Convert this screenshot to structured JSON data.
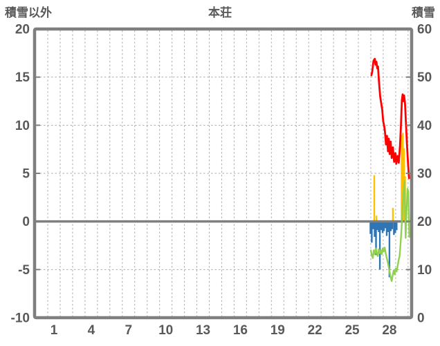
{
  "header": {
    "left_axis_title": "積雪以外",
    "chart_title": "本荘",
    "right_axis_title": "積雪"
  },
  "colors": {
    "frame": "#7F7F7F",
    "grid": "#ABABAB",
    "zero_line": "#7F7F7F",
    "text": "#595959",
    "red_series": "#FF0000",
    "orange_series": "#FFC000",
    "green_series": "#92D050",
    "blue_series": "#2E75B6",
    "background": "#FFFFFF"
  },
  "chart_data": {
    "type": "line",
    "title": "本荘",
    "left_axis": {
      "title": "積雪以外",
      "min": -10,
      "max": 20,
      "ticks": [
        20,
        15,
        10,
        5,
        0,
        -5,
        -10
      ]
    },
    "right_axis": {
      "title": "積雪",
      "min": 0,
      "max": 60,
      "ticks": [
        60,
        50,
        40,
        30,
        20,
        10,
        0
      ],
      "note": "right_value = (left_value + 10) * 2"
    },
    "x_axis": {
      "day_min": 1,
      "day_max": 30,
      "tick_labels": [
        1,
        4,
        7,
        10,
        13,
        16,
        19,
        22,
        25,
        28
      ]
    },
    "grid": {
      "h_dashed_at_left_values": [
        15,
        10,
        5,
        -5
      ],
      "v_dashed_every_day": true,
      "zero_line_left_value": 0
    },
    "series": [
      {
        "name": "blue-bars",
        "type": "bar",
        "axis": "left",
        "color": "#2E75B6",
        "points": [
          [
            26.47,
            -1.3
          ],
          [
            26.58,
            -2.2
          ],
          [
            26.7,
            -0.8
          ],
          [
            26.81,
            -1.6
          ],
          [
            26.92,
            -3.5
          ],
          [
            27.03,
            -0.9
          ],
          [
            27.14,
            -1.1
          ],
          [
            27.23,
            -5.0
          ],
          [
            27.34,
            -0.9
          ],
          [
            27.45,
            -1.2
          ],
          [
            27.56,
            -1.0
          ],
          [
            27.67,
            -0.7
          ],
          [
            27.78,
            -1.5
          ],
          [
            27.9,
            -1.1
          ],
          [
            28.0,
            -5.8
          ],
          [
            28.11,
            -1.0
          ],
          [
            28.22,
            -0.8
          ],
          [
            28.36,
            -1.4
          ],
          [
            28.47,
            -1.2
          ],
          [
            28.58,
            -0.9
          ]
        ]
      },
      {
        "name": "orange-bars",
        "type": "bar",
        "axis": "left",
        "color": "#FFC000",
        "points": [
          [
            26.78,
            4.8
          ],
          [
            26.95,
            0.6
          ],
          [
            28.28,
            1.4
          ],
          [
            28.98,
            9.0
          ],
          [
            29.08,
            9.2
          ],
          [
            29.18,
            7.6
          ],
          [
            29.26,
            4.7
          ]
        ]
      },
      {
        "name": "green-line",
        "type": "line",
        "axis": "left",
        "color": "#92D050",
        "width": 2.4,
        "points": [
          [
            26.5,
            -3.0
          ],
          [
            26.58,
            -3.5
          ],
          [
            26.66,
            -3.8
          ],
          [
            26.74,
            -3.0
          ],
          [
            26.82,
            -3.4
          ],
          [
            26.9,
            -2.8
          ],
          [
            26.98,
            -3.3
          ],
          [
            27.06,
            -3.6
          ],
          [
            27.14,
            -2.9
          ],
          [
            27.22,
            -3.3
          ],
          [
            27.3,
            -3.0
          ],
          [
            27.38,
            -3.4
          ],
          [
            27.46,
            -2.8
          ],
          [
            27.54,
            -3.1
          ],
          [
            27.62,
            -2.7
          ],
          [
            27.7,
            -3.3
          ],
          [
            27.78,
            -3.8
          ],
          [
            27.86,
            -4.2
          ],
          [
            27.94,
            -4.7
          ],
          [
            28.02,
            -5.3
          ],
          [
            28.1,
            -5.8
          ],
          [
            28.18,
            -6.2
          ],
          [
            28.26,
            -5.6
          ],
          [
            28.34,
            -5.1
          ],
          [
            28.42,
            -5.5
          ],
          [
            28.5,
            -4.9
          ],
          [
            28.58,
            -5.2
          ],
          [
            28.66,
            -4.6
          ],
          [
            28.74,
            -4.0
          ],
          [
            28.82,
            -3.6
          ],
          [
            28.9,
            -2.2
          ],
          [
            28.98,
            -0.6
          ],
          [
            29.06,
            1.6
          ],
          [
            29.14,
            3.1
          ],
          [
            29.22,
            4.2
          ],
          [
            29.3,
            -1.7
          ],
          [
            29.38,
            1.2
          ],
          [
            29.45,
            3.4
          ],
          [
            29.52,
            3.1
          ],
          [
            29.6,
            -1.6
          ]
        ]
      },
      {
        "name": "red-line",
        "type": "line",
        "axis": "left",
        "color": "#FF0000",
        "width": 2.8,
        "points": [
          [
            26.55,
            15.2
          ],
          [
            26.62,
            15.6
          ],
          [
            26.72,
            16.7
          ],
          [
            26.82,
            16.9
          ],
          [
            26.88,
            16.3
          ],
          [
            26.95,
            16.6
          ],
          [
            27.02,
            15.9
          ],
          [
            27.08,
            16.1
          ],
          [
            27.15,
            14.6
          ],
          [
            27.25,
            13.0
          ],
          [
            27.35,
            12.2
          ],
          [
            27.42,
            11.6
          ],
          [
            27.5,
            10.4
          ],
          [
            27.58,
            9.9
          ],
          [
            27.65,
            9.2
          ],
          [
            27.72,
            8.0
          ],
          [
            27.8,
            8.9
          ],
          [
            27.88,
            7.3
          ],
          [
            27.95,
            8.6
          ],
          [
            28.02,
            7.0
          ],
          [
            28.1,
            8.3
          ],
          [
            28.18,
            6.6
          ],
          [
            28.28,
            7.7
          ],
          [
            28.38,
            6.2
          ],
          [
            28.48,
            7.1
          ],
          [
            28.55,
            6.0
          ],
          [
            28.65,
            6.8
          ],
          [
            28.75,
            6.1
          ],
          [
            28.85,
            7.9
          ],
          [
            28.92,
            9.7
          ],
          [
            29.0,
            12.6
          ],
          [
            29.06,
            13.2
          ],
          [
            29.12,
            12.5
          ],
          [
            29.18,
            13.1
          ],
          [
            29.25,
            12.3
          ],
          [
            29.32,
            10.5
          ],
          [
            29.4,
            8.2
          ],
          [
            29.5,
            5.9
          ],
          [
            29.58,
            4.5
          ]
        ]
      }
    ]
  }
}
